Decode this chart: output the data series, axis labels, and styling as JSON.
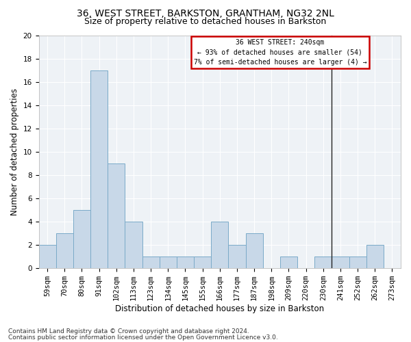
{
  "title": "36, WEST STREET, BARKSTON, GRANTHAM, NG32 2NL",
  "subtitle": "Size of property relative to detached houses in Barkston",
  "xlabel": "Distribution of detached houses by size in Barkston",
  "ylabel": "Number of detached properties",
  "bar_color": "#c8d8e8",
  "bar_edge_color": "#7aaac8",
  "categories": [
    "59sqm",
    "70sqm",
    "80sqm",
    "91sqm",
    "102sqm",
    "113sqm",
    "123sqm",
    "134sqm",
    "145sqm",
    "155sqm",
    "166sqm",
    "177sqm",
    "187sqm",
    "198sqm",
    "209sqm",
    "220sqm",
    "230sqm",
    "241sqm",
    "252sqm",
    "262sqm",
    "273sqm"
  ],
  "values": [
    2,
    3,
    5,
    17,
    9,
    4,
    1,
    1,
    1,
    1,
    4,
    2,
    3,
    0,
    1,
    0,
    1,
    1,
    1,
    2,
    0
  ],
  "ylim": [
    0,
    20
  ],
  "yticks": [
    0,
    2,
    4,
    6,
    8,
    10,
    12,
    14,
    16,
    18,
    20
  ],
  "vline_color": "#222222",
  "annotation_text": "36 WEST STREET: 240sqm\n← 93% of detached houses are smaller (54)\n7% of semi-detached houses are larger (4) →",
  "annotation_box_color": "#cc0000",
  "footer_line1": "Contains HM Land Registry data © Crown copyright and database right 2024.",
  "footer_line2": "Contains public sector information licensed under the Open Government Licence v3.0.",
  "bg_color": "#eef2f6",
  "grid_color": "#ffffff",
  "title_fontsize": 10,
  "subtitle_fontsize": 9,
  "axis_label_fontsize": 8.5,
  "tick_fontsize": 7.5,
  "footer_fontsize": 6.5
}
